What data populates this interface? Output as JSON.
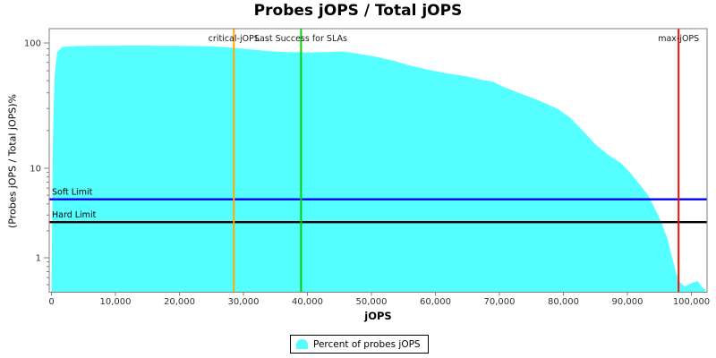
{
  "title": "Probes jOPS / Total jOPS",
  "legend": {
    "label": "Percent of probes jOPS"
  },
  "colors": {
    "area": "#55FFFF",
    "plot_border": "#808080",
    "tick_text": "#333333",
    "marker_label": "#1a1a1a",
    "critical_jops": "#FFAA00",
    "last_success_slas": "#00D400",
    "max_jops": "#EE1100",
    "soft_limit": "#0000EE",
    "hard_limit": "#000000"
  },
  "chart_data": {
    "type": "area",
    "title": "Probes jOPS / Total jOPS",
    "xlabel": "jOPS",
    "ylabel": "(Probes jOPS / Total jOPS)%",
    "y_scale": "log",
    "grid": false,
    "legend_position": "bottom",
    "xlim": [
      0,
      102500
    ],
    "ylim": [
      0.41,
      130
    ],
    "x_ticks": [
      0,
      10000,
      20000,
      30000,
      40000,
      50000,
      60000,
      70000,
      80000,
      90000,
      100000
    ],
    "x_tick_labels": [
      "0",
      "10,000",
      "20,000",
      "30,000",
      "40,000",
      "50,000",
      "60,000",
      "70,000",
      "80,000",
      "90,000",
      "100,000"
    ],
    "y_ticks": [
      100,
      10,
      1
    ],
    "y_tick_labels": [
      "100",
      "10",
      "1"
    ],
    "y_minor_ticks": [
      90,
      80,
      70,
      60,
      50,
      40,
      30,
      20,
      9,
      8,
      7,
      6,
      5,
      4,
      3,
      2,
      0.9,
      0.8,
      0.7,
      0.6,
      0.5
    ],
    "series": [
      {
        "name": "Percent of probes jOPS",
        "points": [
          [
            0,
            0.45
          ],
          [
            250,
            20
          ],
          [
            500,
            55
          ],
          [
            900,
            85
          ],
          [
            1700,
            93
          ],
          [
            4000,
            94.5
          ],
          [
            8000,
            95
          ],
          [
            13000,
            95.2
          ],
          [
            17000,
            95
          ],
          [
            22000,
            94.5
          ],
          [
            25000,
            94
          ],
          [
            28000,
            92
          ],
          [
            31000,
            89
          ],
          [
            34000,
            86
          ],
          [
            37000,
            84.5
          ],
          [
            40000,
            84
          ],
          [
            43000,
            84.5
          ],
          [
            45500,
            85.5
          ],
          [
            48000,
            82
          ],
          [
            51000,
            77
          ],
          [
            53500,
            72
          ],
          [
            56000,
            66
          ],
          [
            59000,
            61
          ],
          [
            62000,
            57
          ],
          [
            65000,
            54
          ],
          [
            67000,
            51
          ],
          [
            69000,
            49
          ],
          [
            70500,
            45
          ],
          [
            73000,
            40
          ],
          [
            76000,
            35
          ],
          [
            79000,
            30
          ],
          [
            81000,
            25.5
          ],
          [
            83000,
            20
          ],
          [
            85000,
            15.5
          ],
          [
            87000,
            12.8
          ],
          [
            89000,
            11
          ],
          [
            90500,
            8.8
          ],
          [
            92000,
            6.5
          ],
          [
            93300,
            4.9
          ],
          [
            94500,
            3.3
          ],
          [
            95400,
            2.4
          ],
          [
            96300,
            1.6
          ],
          [
            97000,
            1.0
          ],
          [
            97700,
            0.65
          ],
          [
            98300,
            0.52
          ],
          [
            99000,
            0.48
          ],
          [
            100000,
            0.52
          ],
          [
            101000,
            0.55
          ],
          [
            101800,
            0.46
          ],
          [
            102200,
            0.44
          ]
        ]
      }
    ],
    "markers": {
      "vertical": [
        {
          "id": "critical-jops",
          "label": "critical-jOPS",
          "value": 28500,
          "color_key": "critical_jops"
        },
        {
          "id": "last-success-for-slas",
          "label": "Last Success for SLAs",
          "value": 39000,
          "color_key": "last_success_slas"
        },
        {
          "id": "max-jops",
          "label": "max-jOPS",
          "value": 98000,
          "color_key": "max_jops"
        }
      ],
      "horizontal": [
        {
          "id": "soft-limit",
          "label": "Soft Limit",
          "value": 4.5,
          "color_key": "soft_limit"
        },
        {
          "id": "hard-limit",
          "label": "Hard Limit",
          "value": 2.5,
          "color_key": "hard_limit"
        }
      ]
    }
  }
}
